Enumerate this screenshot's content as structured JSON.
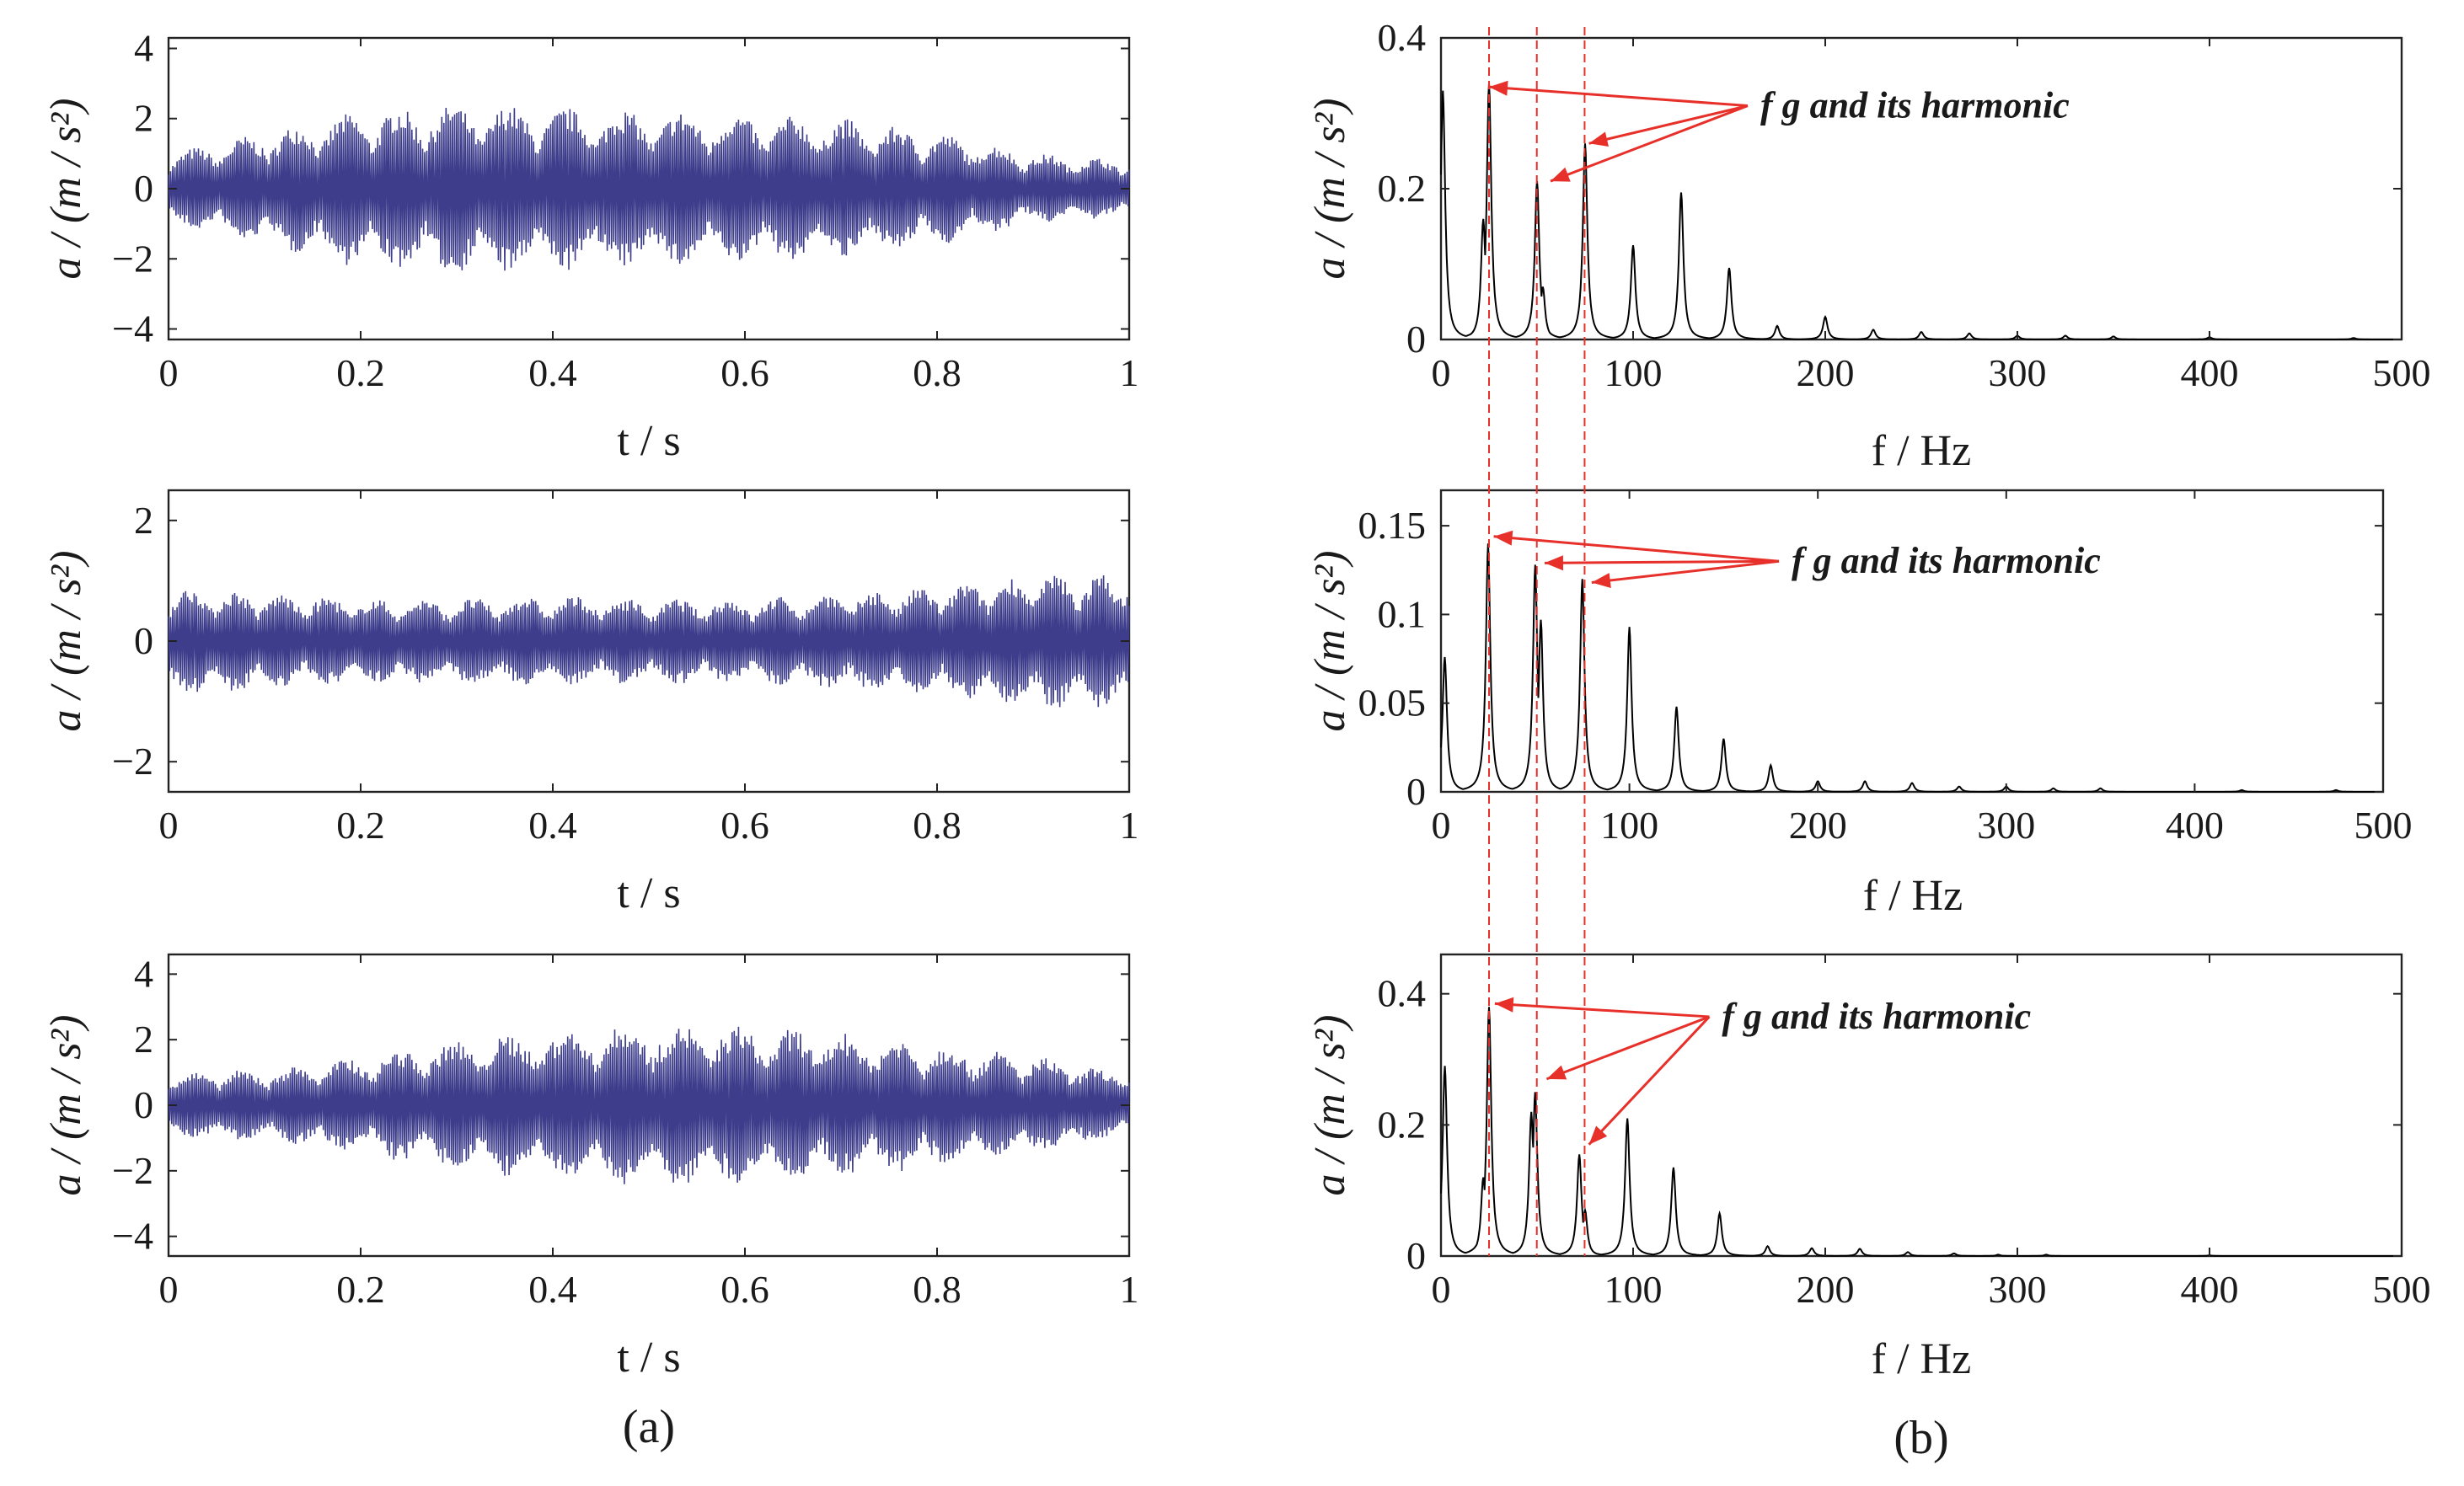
{
  "figure": {
    "panel_labels": [
      "(a)",
      "(b)"
    ]
  },
  "chart_data": [
    {
      "type": "line",
      "id": "time-1",
      "title": "",
      "xlabel": "t / s",
      "ylabel": "a / (m / s²)",
      "xlim": [
        0,
        1
      ],
      "ylim": [
        -4.3,
        4.3
      ],
      "xticks": [
        0,
        0.2,
        0.4,
        0.6,
        0.8,
        1
      ],
      "xtick_labels": [
        "0",
        "0.2",
        "0.4",
        "0.6",
        "0.8",
        "1"
      ],
      "yticks": [
        -4,
        -2,
        0,
        2,
        4
      ],
      "ytick_labels": [
        "−4",
        "−2",
        "0",
        "2",
        "4"
      ],
      "color": "#3d3d8c",
      "signal": {
        "fs": 900,
        "carrier_hz": [
          25,
          50,
          75
        ],
        "envelope": [
          [
            0,
            1.0
          ],
          [
            0.1,
            1.6
          ],
          [
            0.2,
            2.2
          ],
          [
            0.3,
            2.4
          ],
          [
            0.4,
            2.3
          ],
          [
            0.5,
            2.2
          ],
          [
            0.6,
            2.1
          ],
          [
            0.7,
            2.0
          ],
          [
            0.8,
            1.6
          ],
          [
            0.9,
            1.0
          ],
          [
            1.0,
            0.8
          ]
        ],
        "mod_hz": 18
      }
    },
    {
      "type": "line",
      "id": "time-2",
      "title": "",
      "xlabel": "t / s",
      "ylabel": "a / (m / s²)",
      "xlim": [
        0,
        1
      ],
      "ylim": [
        -2.5,
        2.5
      ],
      "xticks": [
        0,
        0.2,
        0.4,
        0.6,
        0.8,
        1
      ],
      "xtick_labels": [
        "0",
        "0.2",
        "0.4",
        "0.6",
        "0.8",
        "1"
      ],
      "yticks": [
        -2,
        0,
        2
      ],
      "ytick_labels": [
        "−2",
        "0",
        "2"
      ],
      "color": "#3d3d8c",
      "signal": {
        "fs": 900,
        "carrier_hz": [
          25,
          50,
          75
        ],
        "envelope": [
          [
            0,
            0.9
          ],
          [
            0.1,
            0.8
          ],
          [
            0.2,
            0.7
          ],
          [
            0.3,
            0.7
          ],
          [
            0.4,
            0.75
          ],
          [
            0.5,
            0.7
          ],
          [
            0.6,
            0.7
          ],
          [
            0.7,
            0.8
          ],
          [
            0.8,
            0.9
          ],
          [
            0.9,
            1.1
          ],
          [
            1.0,
            1.1
          ]
        ],
        "mod_hz": 20
      }
    },
    {
      "type": "line",
      "id": "time-3",
      "title": "",
      "xlabel": "t / s",
      "ylabel": "a / (m / s²)",
      "xlim": [
        0,
        1
      ],
      "ylim": [
        -4.6,
        4.6
      ],
      "xticks": [
        0,
        0.2,
        0.4,
        0.6,
        0.8,
        1
      ],
      "xtick_labels": [
        "0",
        "0.2",
        "0.4",
        "0.6",
        "0.8",
        "1"
      ],
      "yticks": [
        -4,
        -2,
        0,
        2,
        4
      ],
      "ytick_labels": [
        "−4",
        "−2",
        "0",
        "2",
        "4"
      ],
      "color": "#3d3d8c",
      "signal": {
        "fs": 900,
        "carrier_hz": [
          24,
          48,
          72
        ],
        "envelope": [
          [
            0,
            1.0
          ],
          [
            0.1,
            1.1
          ],
          [
            0.2,
            1.5
          ],
          [
            0.3,
            2.0
          ],
          [
            0.4,
            2.3
          ],
          [
            0.5,
            2.5
          ],
          [
            0.6,
            2.4
          ],
          [
            0.7,
            2.2
          ],
          [
            0.8,
            1.9
          ],
          [
            0.9,
            1.5
          ],
          [
            1.0,
            1.0
          ]
        ],
        "mod_hz": 18
      }
    },
    {
      "type": "line",
      "id": "spectrum-1",
      "title": "",
      "xlabel": "f / Hz",
      "ylabel": "a / (m / s²)",
      "xlim": [
        0,
        500
      ],
      "ylim": [
        0,
        0.4
      ],
      "xticks": [
        0,
        100,
        200,
        300,
        400,
        500
      ],
      "xtick_labels": [
        "0",
        "100",
        "200",
        "300",
        "400",
        "500"
      ],
      "yticks": [
        0,
        0.2,
        0.4
      ],
      "ytick_labels": [
        "0",
        "0.2",
        "0.4"
      ],
      "color": "#000000",
      "peaks": [
        {
          "f": 1,
          "a": 0.33
        },
        {
          "f": 22,
          "a": 0.16
        },
        {
          "f": 25,
          "a": 0.34
        },
        {
          "f": 50,
          "a": 0.21
        },
        {
          "f": 53,
          "a": 0.07
        },
        {
          "f": 75,
          "a": 0.26
        },
        {
          "f": 100,
          "a": 0.125
        },
        {
          "f": 125,
          "a": 0.195
        },
        {
          "f": 150,
          "a": 0.095
        },
        {
          "f": 175,
          "a": 0.018
        },
        {
          "f": 200,
          "a": 0.03
        },
        {
          "f": 225,
          "a": 0.013
        },
        {
          "f": 250,
          "a": 0.01
        },
        {
          "f": 275,
          "a": 0.008
        },
        {
          "f": 300,
          "a": 0.005
        },
        {
          "f": 325,
          "a": 0.005
        },
        {
          "f": 350,
          "a": 0.004
        },
        {
          "f": 400,
          "a": 0.003
        },
        {
          "f": 475,
          "a": 0.002
        }
      ],
      "annotation": {
        "text": "f g   and its harmonic",
        "f": 175,
        "a": 0.31,
        "targets": [
          [
            25,
            0.335
          ],
          [
            57,
            0.21
          ],
          [
            77,
            0.26
          ]
        ]
      }
    },
    {
      "type": "line",
      "id": "spectrum-2",
      "title": "",
      "xlabel": "f / Hz",
      "ylabel": "a / (m / s²)",
      "xlim": [
        0,
        500
      ],
      "ylim": [
        0,
        0.17
      ],
      "xticks": [
        0,
        100,
        200,
        300,
        400,
        500
      ],
      "xtick_labels": [
        "0",
        "100",
        "200",
        "300",
        "400",
        "500"
      ],
      "yticks": [
        0,
        0.05,
        0.1,
        0.15
      ],
      "ytick_labels": [
        "0",
        "0.05",
        "0.1",
        "0.15"
      ],
      "color": "#000000",
      "peaks": [
        {
          "f": 2,
          "a": 0.076
        },
        {
          "f": 25,
          "a": 0.14
        },
        {
          "f": 50,
          "a": 0.128
        },
        {
          "f": 53,
          "a": 0.097
        },
        {
          "f": 75,
          "a": 0.12
        },
        {
          "f": 100,
          "a": 0.093
        },
        {
          "f": 125,
          "a": 0.048
        },
        {
          "f": 150,
          "a": 0.03
        },
        {
          "f": 175,
          "a": 0.015
        },
        {
          "f": 200,
          "a": 0.006
        },
        {
          "f": 225,
          "a": 0.006
        },
        {
          "f": 250,
          "a": 0.005
        },
        {
          "f": 275,
          "a": 0.003
        },
        {
          "f": 300,
          "a": 0.003
        },
        {
          "f": 325,
          "a": 0.002
        },
        {
          "f": 350,
          "a": 0.002
        },
        {
          "f": 425,
          "a": 0.001
        },
        {
          "f": 475,
          "a": 0.001
        }
      ],
      "annotation": {
        "text": "f g   and its harmonic",
        "f": 195,
        "a": 0.13,
        "targets": [
          [
            28,
            0.144
          ],
          [
            55,
            0.129
          ],
          [
            80,
            0.118
          ]
        ]
      }
    },
    {
      "type": "line",
      "id": "spectrum-3",
      "title": "",
      "xlabel": "f / Hz",
      "ylabel": "a / (m / s²)",
      "xlim": [
        0,
        500
      ],
      "ylim": [
        0,
        0.46
      ],
      "xticks": [
        0,
        100,
        200,
        300,
        400,
        500
      ],
      "xtick_labels": [
        "0",
        "100",
        "200",
        "300",
        "400",
        "500"
      ],
      "yticks": [
        0,
        0.2,
        0.4
      ],
      "ytick_labels": [
        "0",
        "0.2",
        "0.4"
      ],
      "color": "#000000",
      "peaks": [
        {
          "f": 2,
          "a": 0.29
        },
        {
          "f": 22,
          "a": 0.12
        },
        {
          "f": 25,
          "a": 0.38
        },
        {
          "f": 47,
          "a": 0.22
        },
        {
          "f": 49,
          "a": 0.25
        },
        {
          "f": 72,
          "a": 0.155
        },
        {
          "f": 75,
          "a": 0.07
        },
        {
          "f": 97,
          "a": 0.21
        },
        {
          "f": 121,
          "a": 0.135
        },
        {
          "f": 145,
          "a": 0.065
        },
        {
          "f": 170,
          "a": 0.015
        },
        {
          "f": 193,
          "a": 0.012
        },
        {
          "f": 218,
          "a": 0.011
        },
        {
          "f": 243,
          "a": 0.006
        },
        {
          "f": 267,
          "a": 0.004
        },
        {
          "f": 290,
          "a": 0.002
        },
        {
          "f": 315,
          "a": 0.002
        },
        {
          "f": 400,
          "a": 0.001
        }
      ],
      "annotation": {
        "text": "f g   and its harmonic",
        "f": 155,
        "a": 0.365,
        "targets": [
          [
            28,
            0.385
          ],
          [
            55,
            0.27
          ],
          [
            77,
            0.17
          ]
        ]
      }
    }
  ],
  "guide_lines_hz": [
    24,
    48,
    72
  ]
}
